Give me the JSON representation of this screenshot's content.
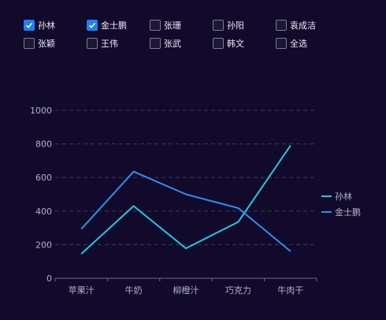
{
  "checkboxes": [
    {
      "label": "孙林",
      "checked": true
    },
    {
      "label": "金士鹏",
      "checked": true
    },
    {
      "label": "张珊",
      "checked": false
    },
    {
      "label": "孙阳",
      "checked": false
    },
    {
      "label": "袁成洁",
      "checked": false
    },
    {
      "label": "张颖",
      "checked": false
    },
    {
      "label": "王伟",
      "checked": false
    },
    {
      "label": "张武",
      "checked": false
    },
    {
      "label": "韩文",
      "checked": false
    },
    {
      "label": "全选",
      "checked": false
    }
  ],
  "colors": {
    "background": "#110a2b",
    "checkbox_checked": "#1e80f4"
  },
  "chart_data": {
    "type": "line",
    "categories": [
      "苹果汁",
      "牛奶",
      "柳橙汁",
      "巧克力",
      "牛肉干"
    ],
    "ylim": [
      0,
      1000
    ],
    "yticks": [
      0,
      200,
      400,
      600,
      800,
      1000
    ],
    "grid": "dashed-horizontal",
    "legend_position": "right",
    "series": [
      {
        "name": "孙林",
        "color": "#26c6e6",
        "values": [
          145,
          430,
          178,
          335,
          790
        ]
      },
      {
        "name": "金士鹏",
        "color": "#2b90f0",
        "values": [
          293,
          635,
          500,
          418,
          160
        ]
      }
    ]
  }
}
